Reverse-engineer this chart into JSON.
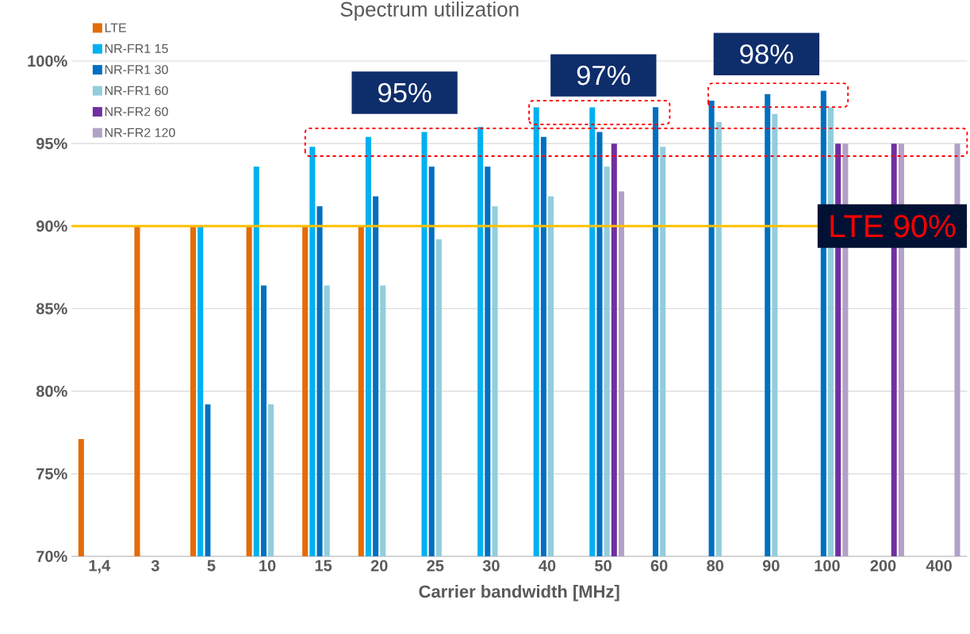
{
  "chart_data": {
    "type": "bar",
    "title": "Spectrum utilization",
    "xlabel": "Carrier bandwidth [MHz]",
    "categories": [
      "1,4",
      "3",
      "5",
      "10",
      "15",
      "20",
      "25",
      "30",
      "40",
      "50",
      "60",
      "80",
      "90",
      "100",
      "200",
      "400"
    ],
    "series": [
      {
        "name": "LTE",
        "color": "#e36c09",
        "values": [
          77.1,
          90,
          90,
          90,
          90,
          90,
          null,
          null,
          null,
          null,
          null,
          null,
          null,
          null,
          null,
          null
        ]
      },
      {
        "name": "NR-FR1 15",
        "color": "#00b0f0",
        "values": [
          null,
          null,
          90,
          93.6,
          94.8,
          95.4,
          95.7,
          96.0,
          97.2,
          97.2,
          null,
          null,
          null,
          null,
          null,
          null
        ]
      },
      {
        "name": "NR-FR1 30",
        "color": "#0070c0",
        "values": [
          null,
          null,
          79.2,
          86.4,
          91.2,
          91.8,
          93.6,
          93.6,
          95.4,
          95.7,
          97.2,
          97.6,
          98.0,
          98.2,
          null,
          null
        ]
      },
      {
        "name": "NR-FR1 60",
        "color": "#92cddc",
        "values": [
          null,
          null,
          null,
          79.2,
          86.4,
          86.4,
          89.2,
          91.2,
          91.8,
          93.6,
          94.8,
          96.3,
          96.8,
          97.2,
          null,
          null
        ]
      },
      {
        "name": "NR-FR2 60",
        "color": "#7030a0",
        "values": [
          null,
          null,
          null,
          null,
          null,
          null,
          null,
          null,
          null,
          95.0,
          null,
          null,
          null,
          95.0,
          95.0,
          null
        ]
      },
      {
        "name": "NR-FR2 120",
        "color": "#b2a1c7",
        "values": [
          null,
          null,
          null,
          null,
          null,
          null,
          null,
          null,
          null,
          92.1,
          null,
          null,
          null,
          95.0,
          95.0,
          95.0
        ]
      }
    ],
    "ylim": [
      70,
      100
    ],
    "yticks": [
      {
        "value": 70,
        "label": "70%"
      },
      {
        "value": 75,
        "label": "75%"
      },
      {
        "value": 80,
        "label": "80%"
      },
      {
        "value": 85,
        "label": "85%"
      },
      {
        "value": 90,
        "label": "90%"
      },
      {
        "value": 95,
        "label": "95%"
      },
      {
        "value": 100,
        "label": "100%"
      }
    ],
    "grid": "y",
    "legend": "top left",
    "ref_lines": [
      {
        "axis": "y",
        "value": 90,
        "label": "LTE 90%",
        "color": "#ffc000"
      }
    ],
    "annotations": [
      "95%",
      "97%",
      "98%"
    ]
  }
}
